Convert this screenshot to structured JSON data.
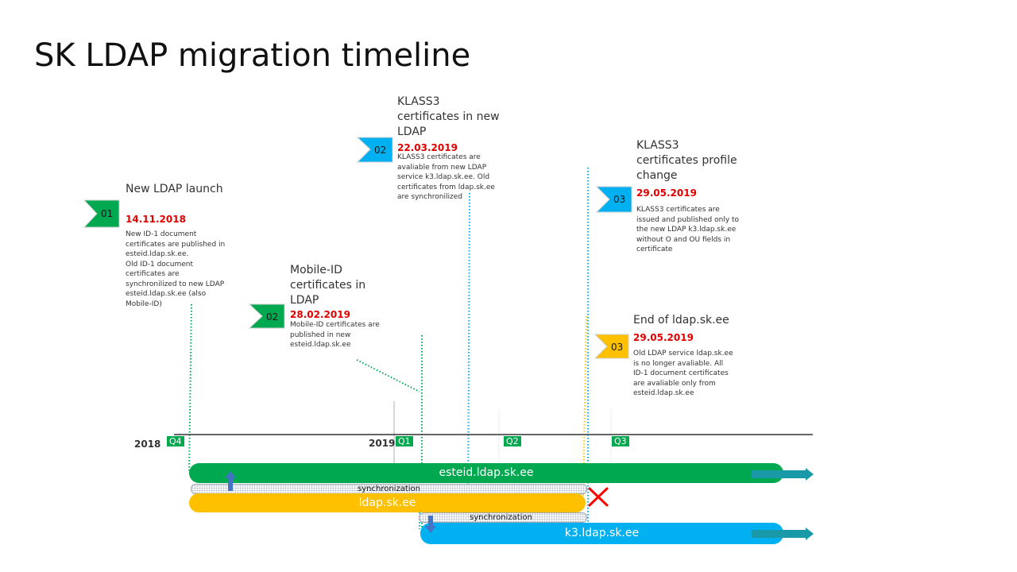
{
  "page": {
    "title": "SK LDAP migration timeline"
  },
  "milestones": [
    {
      "flag": "01",
      "heading": "New LDAP launch",
      "date": "14.11.2018",
      "lines": [
        "New ID-1 document",
        "certificates are published in",
        "esteid.ldap.sk.ee.",
        "Old ID-1 document",
        "certificates are",
        "synchronilized to new LDAP",
        "esteid.ldap.sk.ee (also",
        "Mobile-ID)"
      ]
    },
    {
      "flag": "02",
      "heading_lines": [
        "Mobile-ID",
        "certificates in",
        "LDAP"
      ],
      "date": "28.02.2019",
      "lines": [
        "Mobile-ID certificates are",
        "published in new",
        "esteid.ldap.sk.ee"
      ]
    },
    {
      "flag": "02",
      "heading_lines": [
        "KLASS3",
        "certificates in new",
        "LDAP"
      ],
      "date": "22.03.2019",
      "lines": [
        "KLASS3 certificates are",
        "avaliable from new LDAP",
        "service k3.ldap.sk.ee. Old",
        "certificates from ldap.sk.ee",
        "are synchronilized"
      ]
    },
    {
      "flag": "03",
      "heading_lines": [
        "KLASS3",
        "certificates profile",
        "change"
      ],
      "date": "29.05.2019",
      "lines": [
        "KLASS3 certificates are",
        "issued and published only to",
        "the new LDAP k3.ldap.sk.ee",
        "without O and OU fields in",
        "certificate"
      ]
    },
    {
      "flag": "03",
      "heading": "End of ldap.sk.ee",
      "date": "29.05.2019",
      "lines": [
        "Old LDAP service ldap.sk.ee",
        "is no longer avaliable.  All",
        "ID-1 document certificates",
        "are avaliable only from",
        "esteid.ldap.sk.ee"
      ]
    }
  ],
  "timeline": {
    "years": [
      "2018",
      "2019"
    ],
    "quarters": [
      "Q4",
      "Q1",
      "Q2",
      "Q3"
    ]
  },
  "bars": {
    "esteid": "esteid.ldap.sk.ee",
    "ldap": "ldap.sk.ee",
    "k3": "k3.ldap.sk.ee",
    "sync_label": "synchronization"
  },
  "colors": {
    "green": "#00a850",
    "blue": "#00b0f0",
    "yellow": "#ffc000",
    "teal_arrow": "#1a9aa8",
    "red_date": "#e00000",
    "red_cross": "#ff0000",
    "up_arrow": "#4472c4"
  }
}
